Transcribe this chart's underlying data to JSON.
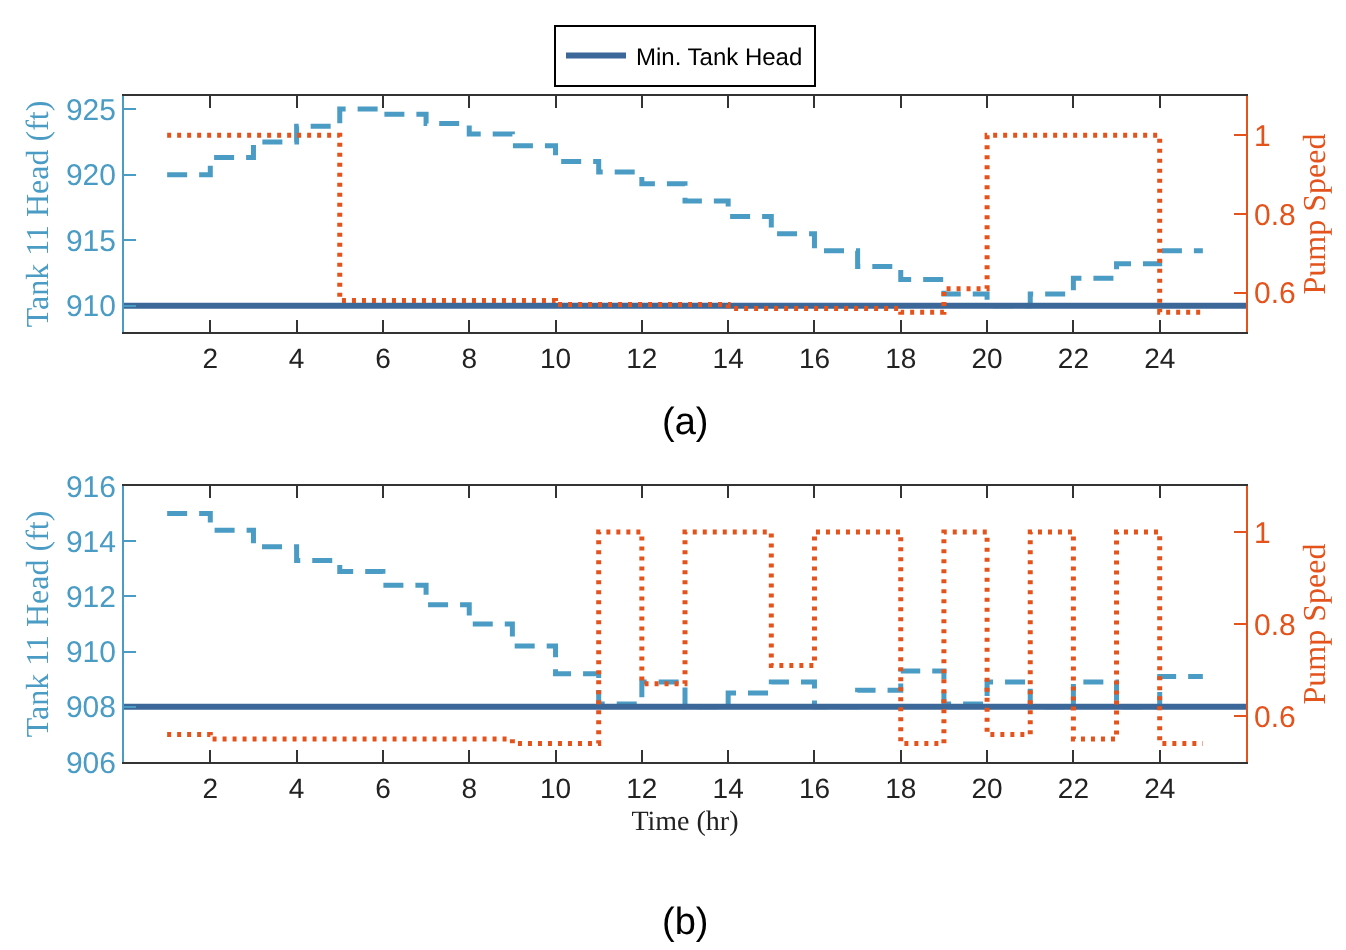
{
  "chart_data": [
    {
      "type": "step",
      "ylabel": "Tank 11 Head (ft)",
      "y2label": "Pump Speed",
      "annotations": [
        "(a)"
      ],
      "legend": "top",
      "xlim": [
        0,
        26
      ],
      "xticks": [
        2,
        4,
        6,
        8,
        10,
        12,
        14,
        16,
        18,
        20,
        22,
        24
      ],
      "ylim": [
        908,
        926
      ],
      "yticks": [
        910,
        915,
        920,
        925
      ],
      "y2lim": [
        0.5,
        1.1
      ],
      "y2ticks": [
        0.6,
        0.8,
        1
      ],
      "series": [
        {
          "type": "step",
          "color": "#4a9cc4",
          "line_style": "dashed",
          "x": [
            1,
            2,
            3,
            4,
            5,
            6,
            7,
            8,
            9,
            10,
            11,
            12,
            13,
            14,
            15,
            16,
            17,
            18,
            19,
            20,
            21,
            22,
            23,
            24,
            25
          ],
          "values": [
            920.0,
            921.3,
            922.5,
            923.7,
            925.0,
            924.6,
            923.9,
            923.1,
            922.2,
            921.0,
            920.2,
            919.3,
            918.0,
            916.8,
            915.5,
            914.2,
            913.0,
            912.0,
            910.9,
            910.0,
            910.9,
            912.1,
            913.2,
            914.2,
            914.2
          ]
        },
        {
          "type": "step",
          "axis": "y2",
          "color": "#e4531c",
          "line_style": "dotted",
          "x": [
            1,
            2,
            3,
            4,
            5,
            6,
            7,
            8,
            9,
            10,
            11,
            12,
            13,
            14,
            15,
            16,
            17,
            18,
            19,
            20,
            21,
            22,
            23,
            24,
            25
          ],
          "values": [
            1,
            1,
            1,
            1,
            0.58,
            0.58,
            0.58,
            0.58,
            0.58,
            0.57,
            0.57,
            0.57,
            0.57,
            0.56,
            0.56,
            0.56,
            0.56,
            0.55,
            0.61,
            1,
            1,
            1,
            1,
            0.55,
            0.55
          ]
        },
        {
          "type": "line",
          "name": "Min. Tank Head",
          "color": "#3c6799",
          "line_style": "solid",
          "x": [
            0,
            26
          ],
          "values": [
            910,
            910
          ]
        }
      ]
    },
    {
      "type": "step",
      "xlabel": "Time (hr)",
      "ylabel": "Tank 11 Head (ft)",
      "y2label": "Pump Speed",
      "annotations": [
        "(b)"
      ],
      "xlim": [
        0,
        26
      ],
      "xticks": [
        2,
        4,
        6,
        8,
        10,
        12,
        14,
        16,
        18,
        20,
        22,
        24
      ],
      "ylim": [
        906,
        916
      ],
      "yticks": [
        906,
        908,
        910,
        912,
        914,
        916
      ],
      "y2lim": [
        0.5,
        1.1
      ],
      "y2ticks": [
        0.6,
        0.8,
        1
      ],
      "series": [
        {
          "type": "step",
          "color": "#4a9cc4",
          "line_style": "dashed",
          "x": [
            1,
            2,
            3,
            4,
            5,
            6,
            7,
            8,
            9,
            10,
            11,
            12,
            13,
            14,
            15,
            16,
            17,
            18,
            19,
            20,
            21,
            22,
            23,
            24,
            25
          ],
          "values": [
            915.0,
            914.4,
            913.8,
            913.3,
            912.9,
            912.4,
            911.7,
            911.0,
            910.2,
            909.2,
            908.1,
            908.9,
            908.0,
            908.5,
            908.9,
            908.0,
            908.6,
            909.3,
            908.1,
            908.9,
            908.0,
            908.9,
            908.0,
            909.1,
            909.1
          ]
        },
        {
          "type": "step",
          "axis": "y2",
          "color": "#e4531c",
          "line_style": "dotted",
          "x": [
            1,
            2,
            3,
            4,
            5,
            6,
            7,
            8,
            9,
            10,
            11,
            12,
            13,
            14,
            15,
            16,
            17,
            18,
            19,
            20,
            21,
            22,
            23,
            24,
            25
          ],
          "values": [
            0.56,
            0.55,
            0.55,
            0.55,
            0.55,
            0.55,
            0.55,
            0.55,
            0.54,
            0.54,
            1,
            0.67,
            1,
            1,
            0.71,
            1,
            1,
            0.54,
            1,
            0.56,
            1,
            0.55,
            1,
            0.54,
            0.54
          ]
        },
        {
          "type": "line",
          "color": "#3c6799",
          "line_style": "solid",
          "x": [
            0,
            26
          ],
          "values": [
            908,
            908
          ]
        }
      ]
    }
  ]
}
